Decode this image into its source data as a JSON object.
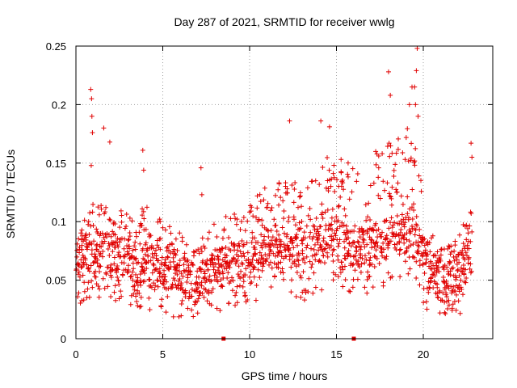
{
  "chart_data": {
    "type": "scatter",
    "title": "Day 287 of 2021, SRMTID for receiver wwlg",
    "xlabel": "GPS time / hours",
    "ylabel": "SRMTID / TECUs",
    "xlim": [
      0,
      24
    ],
    "ylim": [
      0,
      0.25
    ],
    "xticks": [
      0,
      5,
      10,
      15,
      20
    ],
    "xtick_labels": [
      "0",
      "5",
      "10",
      "15",
      "20"
    ],
    "yticks": [
      0,
      0.05,
      0.1,
      0.15,
      0.2,
      0.25
    ],
    "ytick_labels": [
      "0",
      "0.05",
      "0.1",
      "0.15",
      "0.2",
      "0.25"
    ],
    "grid": true,
    "color": "#e00000",
    "marker": "plus",
    "gap_markers_x": [
      8.5,
      16.0
    ],
    "envelope": {
      "x": [
        0,
        1,
        2,
        3,
        3.5,
        4,
        5,
        6,
        7,
        8,
        9,
        10,
        11,
        12,
        13,
        14,
        15,
        16,
        17,
        18,
        19,
        19.5,
        20,
        20.5,
        21,
        21.5,
        22,
        22.5,
        22.8
      ],
      "mid": [
        0.068,
        0.075,
        0.072,
        0.07,
        0.05,
        0.065,
        0.06,
        0.055,
        0.045,
        0.06,
        0.065,
        0.07,
        0.075,
        0.08,
        0.07,
        0.08,
        0.085,
        0.075,
        0.08,
        0.085,
        0.09,
        0.095,
        0.07,
        0.055,
        0.05,
        0.05,
        0.055,
        0.07,
        0.095
      ],
      "top": [
        0.09,
        0.12,
        0.11,
        0.11,
        0.095,
        0.12,
        0.1,
        0.09,
        0.08,
        0.1,
        0.11,
        0.12,
        0.13,
        0.14,
        0.13,
        0.15,
        0.16,
        0.15,
        0.16,
        0.17,
        0.18,
        0.18,
        0.12,
        0.09,
        0.08,
        0.08,
        0.085,
        0.11,
        0.16
      ]
    },
    "outliers": [
      {
        "x": 0.85,
        "y": 0.213
      },
      {
        "x": 0.9,
        "y": 0.205
      },
      {
        "x": 0.92,
        "y": 0.19
      },
      {
        "x": 0.95,
        "y": 0.176
      },
      {
        "x": 0.88,
        "y": 0.148
      },
      {
        "x": 1.6,
        "y": 0.18
      },
      {
        "x": 1.95,
        "y": 0.168
      },
      {
        "x": 3.85,
        "y": 0.161
      },
      {
        "x": 3.9,
        "y": 0.144
      },
      {
        "x": 7.2,
        "y": 0.146
      },
      {
        "x": 7.25,
        "y": 0.123
      },
      {
        "x": 12.3,
        "y": 0.186
      },
      {
        "x": 14.1,
        "y": 0.186
      },
      {
        "x": 14.6,
        "y": 0.181
      },
      {
        "x": 18.0,
        "y": 0.228
      },
      {
        "x": 18.1,
        "y": 0.208
      },
      {
        "x": 19.2,
        "y": 0.2
      },
      {
        "x": 19.35,
        "y": 0.215
      },
      {
        "x": 19.5,
        "y": 0.215
      },
      {
        "x": 19.6,
        "y": 0.229
      },
      {
        "x": 19.65,
        "y": 0.248
      },
      {
        "x": 19.55,
        "y": 0.2
      },
      {
        "x": 19.7,
        "y": 0.19
      },
      {
        "x": 22.75,
        "y": 0.167
      },
      {
        "x": 22.8,
        "y": 0.155
      }
    ]
  }
}
